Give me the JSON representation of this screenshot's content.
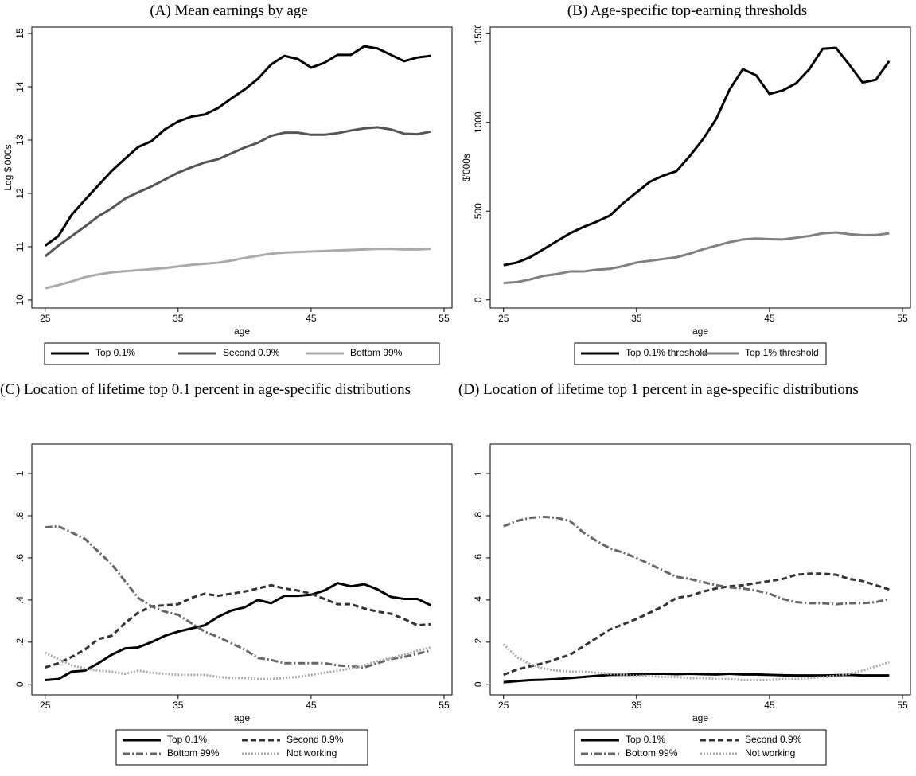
{
  "chart_data": [
    {
      "type": "line",
      "title": "(A) Mean earnings by age",
      "xlabel": "age",
      "ylabel": "Log $'000s",
      "x": [
        25,
        26,
        27,
        28,
        29,
        30,
        31,
        32,
        33,
        34,
        35,
        36,
        37,
        38,
        39,
        40,
        41,
        42,
        43,
        44,
        45,
        46,
        47,
        48,
        49,
        50,
        51,
        52,
        53,
        54
      ],
      "xlim": [
        24,
        55.6
      ],
      "xticks": [
        25,
        35,
        45,
        55
      ],
      "ylim": [
        9.85,
        15.12
      ],
      "yticks": [
        10,
        11,
        12,
        13,
        14,
        15
      ],
      "series": [
        {
          "name": "Top 0.1%",
          "color": "#000000",
          "dash": "solid",
          "values": [
            11.02,
            11.2,
            11.6,
            11.88,
            12.15,
            12.42,
            12.65,
            12.87,
            12.98,
            13.2,
            13.35,
            13.44,
            13.48,
            13.6,
            13.78,
            13.95,
            14.15,
            14.42,
            14.58,
            14.52,
            14.36,
            14.45,
            14.6,
            14.6,
            14.76,
            14.72,
            14.6,
            14.48,
            14.55,
            14.58
          ]
        },
        {
          "name": "Second 0.9%",
          "color": "#555555",
          "dash": "solid",
          "values": [
            10.82,
            11.02,
            11.2,
            11.38,
            11.57,
            11.72,
            11.9,
            12.02,
            12.13,
            12.26,
            12.39,
            12.49,
            12.58,
            12.64,
            12.75,
            12.86,
            12.95,
            13.08,
            13.14,
            13.14,
            13.1,
            13.1,
            13.13,
            13.18,
            13.22,
            13.24,
            13.2,
            13.12,
            13.11,
            13.16
          ]
        },
        {
          "name": "Bottom 99%",
          "color": "#aaaaaa",
          "dash": "solid",
          "values": [
            10.22,
            10.28,
            10.35,
            10.43,
            10.48,
            10.52,
            10.54,
            10.56,
            10.58,
            10.6,
            10.63,
            10.66,
            10.68,
            10.7,
            10.74,
            10.79,
            10.83,
            10.87,
            10.89,
            10.9,
            10.91,
            10.92,
            10.93,
            10.94,
            10.95,
            10.96,
            10.96,
            10.95,
            10.95,
            10.96
          ]
        }
      ]
    },
    {
      "type": "line",
      "title": "(B) Age-specific top-earning thresholds",
      "xlabel": "age",
      "ylabel": "$'000s",
      "x": [
        25,
        26,
        27,
        28,
        29,
        30,
        31,
        32,
        33,
        34,
        35,
        36,
        37,
        38,
        39,
        40,
        41,
        42,
        43,
        44,
        45,
        46,
        47,
        48,
        49,
        50,
        51,
        52,
        53,
        54
      ],
      "xlim": [
        24,
        55.6
      ],
      "xticks": [
        25,
        35,
        45,
        55
      ],
      "ylim": [
        -46,
        1537
      ],
      "yticks": [
        0,
        500,
        1000,
        1500
      ],
      "series": [
        {
          "name": "Top 0.1% threshold",
          "color": "#000000",
          "dash": "solid",
          "values": [
            195,
            210,
            240,
            285,
            330,
            375,
            410,
            440,
            475,
            545,
            605,
            665,
            700,
            725,
            810,
            905,
            1020,
            1185,
            1300,
            1265,
            1160,
            1180,
            1220,
            1300,
            1415,
            1420,
            1325,
            1225,
            1240,
            1345
          ]
        },
        {
          "name": "Top 1% threshold",
          "color": "#808080",
          "dash": "solid",
          "values": [
            95,
            100,
            115,
            135,
            145,
            160,
            160,
            170,
            175,
            190,
            210,
            220,
            230,
            240,
            260,
            285,
            305,
            325,
            340,
            345,
            342,
            340,
            350,
            360,
            375,
            380,
            370,
            365,
            365,
            375
          ]
        }
      ]
    },
    {
      "type": "line",
      "title": "(C) Location of lifetime top 0.1 percent in age-specific distributions",
      "xlabel": "age",
      "x": [
        25,
        26,
        27,
        28,
        29,
        30,
        31,
        32,
        33,
        34,
        35,
        36,
        37,
        38,
        39,
        40,
        41,
        42,
        43,
        44,
        45,
        46,
        47,
        48,
        49,
        50,
        51,
        52,
        53,
        54
      ],
      "xlim": [
        24,
        55.6
      ],
      "xticks": [
        25,
        35,
        45,
        55
      ],
      "ylim": [
        -0.05,
        1.14
      ],
      "yticks": [
        0,
        {
          "value": 0.2,
          "label": ".2"
        },
        {
          "value": 0.4,
          "label": ".4"
        },
        {
          "value": 0.6,
          "label": ".6"
        },
        {
          "value": 0.8,
          "label": ".8"
        },
        1
      ],
      "series": [
        {
          "name": "Top 0.1%",
          "color": "#000000",
          "dash": "solid",
          "values": [
            0.02,
            0.025,
            0.06,
            0.065,
            0.1,
            0.14,
            0.17,
            0.175,
            0.2,
            0.23,
            0.25,
            0.265,
            0.28,
            0.32,
            0.35,
            0.365,
            0.4,
            0.385,
            0.42,
            0.42,
            0.425,
            0.445,
            0.48,
            0.465,
            0.475,
            0.45,
            0.415,
            0.405,
            0.405,
            0.375
          ]
        },
        {
          "name": "Second 0.9%",
          "color": "#333333",
          "dash": "dash",
          "values": [
            0.08,
            0.1,
            0.13,
            0.165,
            0.215,
            0.23,
            0.29,
            0.34,
            0.37,
            0.375,
            0.38,
            0.41,
            0.43,
            0.42,
            0.43,
            0.44,
            0.455,
            0.47,
            0.455,
            0.445,
            0.43,
            0.405,
            0.38,
            0.38,
            0.36,
            0.345,
            0.335,
            0.31,
            0.28,
            0.285
          ]
        },
        {
          "name": "Bottom 99%",
          "color": "#666666",
          "dash": "dashdot",
          "values": [
            0.745,
            0.75,
            0.72,
            0.69,
            0.63,
            0.57,
            0.49,
            0.41,
            0.37,
            0.345,
            0.33,
            0.29,
            0.25,
            0.225,
            0.195,
            0.165,
            0.125,
            0.115,
            0.1,
            0.1,
            0.1,
            0.1,
            0.09,
            0.085,
            0.08,
            0.1,
            0.12,
            0.13,
            0.145,
            0.16
          ]
        },
        {
          "name": "Not working",
          "color": "#aaaaaa",
          "dash": "dot",
          "values": [
            0.15,
            0.12,
            0.09,
            0.075,
            0.065,
            0.06,
            0.05,
            0.065,
            0.055,
            0.05,
            0.045,
            0.045,
            0.045,
            0.035,
            0.03,
            0.03,
            0.025,
            0.025,
            0.03,
            0.035,
            0.045,
            0.055,
            0.065,
            0.075,
            0.09,
            0.11,
            0.125,
            0.14,
            0.16,
            0.175
          ]
        }
      ]
    },
    {
      "type": "line",
      "title": "(D) Location of lifetime top 1 percent in age-specific distributions",
      "xlabel": "age",
      "x": [
        25,
        26,
        27,
        28,
        29,
        30,
        31,
        32,
        33,
        34,
        35,
        36,
        37,
        38,
        39,
        40,
        41,
        42,
        43,
        44,
        45,
        46,
        47,
        48,
        49,
        50,
        51,
        52,
        53,
        54
      ],
      "xlim": [
        24,
        55.6
      ],
      "xticks": [
        25,
        35,
        45,
        55
      ],
      "ylim": [
        -0.05,
        1.14
      ],
      "yticks": [
        0,
        {
          "value": 0.2,
          "label": ".2"
        },
        {
          "value": 0.4,
          "label": ".4"
        },
        {
          "value": 0.6,
          "label": ".6"
        },
        {
          "value": 0.8,
          "label": ".8"
        },
        1
      ],
      "series": [
        {
          "name": "Top 0.1%",
          "color": "#000000",
          "dash": "solid",
          "values": [
            0.01,
            0.015,
            0.02,
            0.022,
            0.025,
            0.03,
            0.035,
            0.04,
            0.045,
            0.045,
            0.047,
            0.05,
            0.05,
            0.048,
            0.05,
            0.048,
            0.047,
            0.05,
            0.047,
            0.047,
            0.045,
            0.043,
            0.042,
            0.042,
            0.042,
            0.043,
            0.045,
            0.042,
            0.042,
            0.042
          ]
        },
        {
          "name": "Second 0.9%",
          "color": "#333333",
          "dash": "dash",
          "values": [
            0.045,
            0.07,
            0.085,
            0.1,
            0.12,
            0.14,
            0.18,
            0.22,
            0.26,
            0.285,
            0.31,
            0.34,
            0.37,
            0.41,
            0.42,
            0.44,
            0.455,
            0.465,
            0.47,
            0.48,
            0.49,
            0.5,
            0.52,
            0.525,
            0.525,
            0.52,
            0.5,
            0.49,
            0.47,
            0.45
          ]
        },
        {
          "name": "Bottom 99%",
          "color": "#666666",
          "dash": "dashdot",
          "values": [
            0.75,
            0.775,
            0.79,
            0.795,
            0.79,
            0.775,
            0.72,
            0.68,
            0.645,
            0.625,
            0.6,
            0.57,
            0.54,
            0.51,
            0.5,
            0.485,
            0.47,
            0.46,
            0.455,
            0.445,
            0.43,
            0.405,
            0.39,
            0.385,
            0.385,
            0.38,
            0.385,
            0.385,
            0.39,
            0.405
          ]
        },
        {
          "name": "Not working",
          "color": "#aaaaaa",
          "dash": "dot",
          "values": [
            0.19,
            0.13,
            0.095,
            0.075,
            0.065,
            0.06,
            0.06,
            0.055,
            0.05,
            0.045,
            0.04,
            0.04,
            0.035,
            0.035,
            0.03,
            0.03,
            0.025,
            0.025,
            0.02,
            0.02,
            0.02,
            0.025,
            0.025,
            0.03,
            0.035,
            0.04,
            0.05,
            0.065,
            0.085,
            0.105
          ]
        }
      ]
    }
  ]
}
